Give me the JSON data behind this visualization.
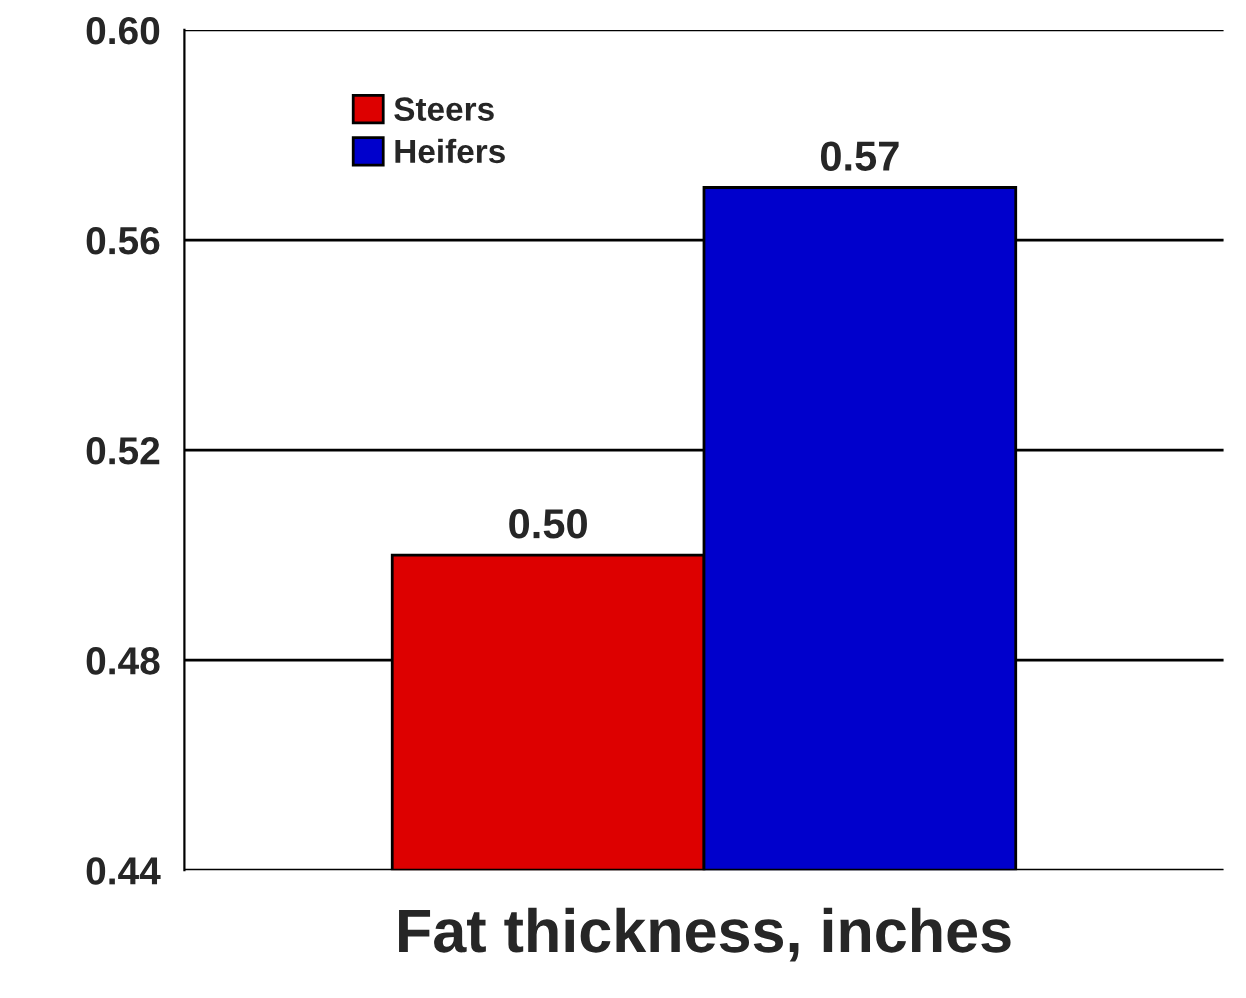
{
  "chart_data": {
    "type": "bar",
    "xlabel": "Fat thickness, inches",
    "categories": [
      null
    ],
    "series": [
      {
        "name": "Steers",
        "color": "#dd0000",
        "values": [
          0.5
        ],
        "value_labels": [
          "0.50"
        ]
      },
      {
        "name": "Heifers",
        "color": "#0000cc",
        "values": [
          0.57
        ],
        "value_labels": [
          "0.57"
        ]
      }
    ],
    "ylim": [
      0.44,
      0.6
    ],
    "yticks": [
      {
        "value": 0.44,
        "label": "0.44"
      },
      {
        "value": 0.48,
        "label": "0.48"
      },
      {
        "value": 0.52,
        "label": "0.52"
      },
      {
        "value": 0.56,
        "label": "0.56"
      },
      {
        "value": 0.6,
        "label": "0.60"
      }
    ],
    "grid": "y",
    "legend": "top left"
  }
}
